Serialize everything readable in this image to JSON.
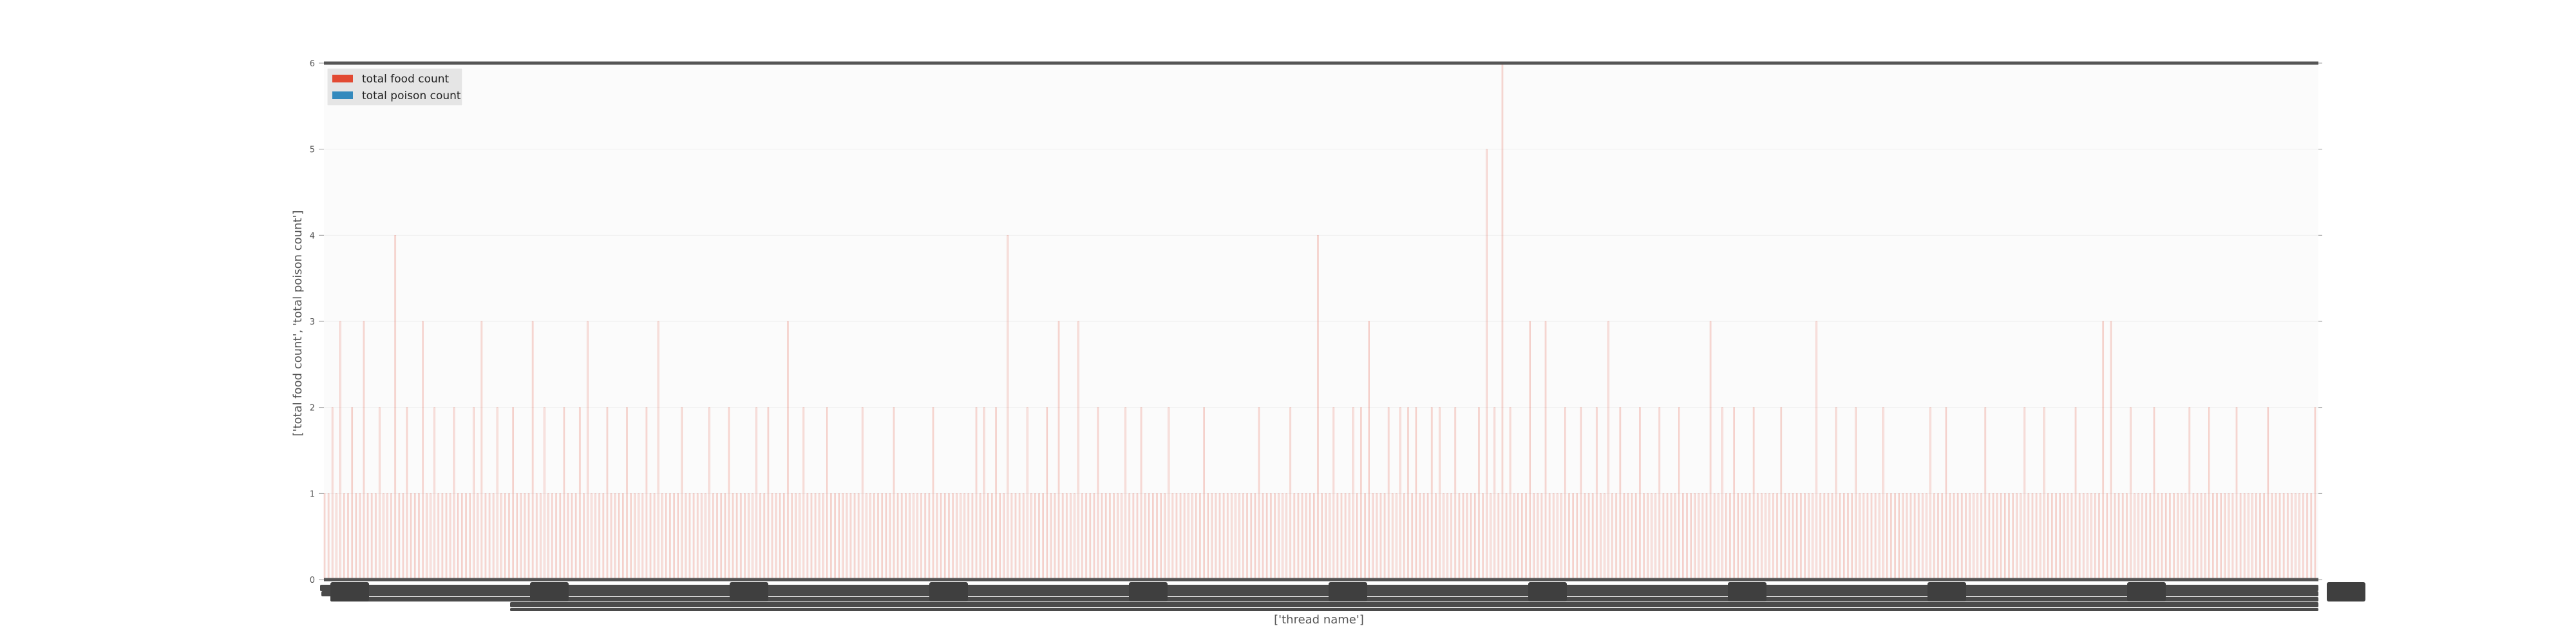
{
  "chart_data": {
    "type": "bar",
    "title": "",
    "xlabel": "['thread name']",
    "ylabel": "['total food count', 'total poison count']",
    "ylim": [
      0,
      6
    ],
    "yticks": [
      0,
      1,
      2,
      3,
      4,
      5,
      6
    ],
    "grid": true,
    "legend_position": "top-left",
    "x_tick_labels_legible": false,
    "category_count": 500,
    "series": [
      {
        "name": "total food count",
        "color": "#e24a33",
        "values": [
          1,
          1,
          2,
          1,
          3,
          1,
          1,
          2,
          1,
          1,
          3,
          1,
          1,
          1,
          2,
          1,
          1,
          1,
          4,
          1,
          1,
          2,
          1,
          1,
          1,
          3,
          1,
          1,
          2,
          1,
          1,
          1,
          1,
          2,
          1,
          1,
          1,
          1,
          2,
          1,
          3,
          1,
          1,
          1,
          2,
          1,
          1,
          1,
          2,
          1,
          1,
          1,
          1,
          3,
          1,
          1,
          2,
          1,
          1,
          1,
          1,
          2,
          1,
          1,
          1,
          2,
          1,
          3,
          1,
          1,
          1,
          1,
          2,
          1,
          1,
          1,
          1,
          2,
          1,
          1,
          1,
          1,
          2,
          1,
          1,
          3,
          1,
          1,
          1,
          1,
          1,
          2,
          1,
          1,
          1,
          1,
          1,
          1,
          2,
          1,
          1,
          1,
          1,
          2,
          1,
          1,
          1,
          1,
          1,
          1,
          2,
          1,
          1,
          2,
          1,
          1,
          1,
          1,
          3,
          1,
          1,
          1,
          2,
          1,
          1,
          1,
          1,
          1,
          2,
          1,
          1,
          1,
          1,
          1,
          1,
          1,
          1,
          2,
          1,
          1,
          1,
          1,
          1,
          1,
          1,
          2,
          1,
          1,
          1,
          1,
          1,
          1,
          1,
          1,
          1,
          2,
          1,
          1,
          1,
          1,
          1,
          1,
          1,
          1,
          1,
          1,
          2,
          1,
          2,
          1,
          1,
          2,
          1,
          1,
          4,
          1,
          1,
          1,
          1,
          2,
          1,
          1,
          1,
          1,
          2,
          1,
          1,
          3,
          1,
          1,
          1,
          1,
          3,
          1,
          1,
          1,
          1,
          2,
          1,
          1,
          1,
          1,
          1,
          1,
          2,
          1,
          1,
          1,
          2,
          1,
          1,
          1,
          1,
          1,
          1,
          2,
          1,
          1,
          1,
          1,
          1,
          1,
          1,
          1,
          2,
          1,
          1,
          1,
          1,
          1,
          1,
          1,
          1,
          1,
          1,
          1,
          1,
          1,
          2,
          1,
          1,
          1,
          1,
          1,
          1,
          1,
          2,
          1,
          1,
          1,
          1,
          1,
          1,
          4,
          1,
          1,
          1,
          2,
          1,
          1,
          1,
          1,
          2,
          1,
          2,
          1,
          3,
          1,
          1,
          1,
          1,
          2,
          1,
          1,
          2,
          1,
          2,
          1,
          2,
          1,
          1,
          1,
          2,
          1,
          2,
          1,
          1,
          1,
          2,
          1,
          1,
          1,
          1,
          1,
          2,
          1,
          5,
          1,
          2,
          1,
          6,
          1,
          2,
          1,
          1,
          1,
          1,
          3,
          1,
          1,
          1,
          3,
          1,
          1,
          1,
          1,
          2,
          1,
          1,
          1,
          2,
          1,
          1,
          1,
          2,
          1,
          1,
          3,
          1,
          1,
          2,
          1,
          1,
          1,
          1,
          2,
          1,
          1,
          1,
          1,
          2,
          1,
          1,
          1,
          1,
          2,
          1,
          1,
          1,
          1,
          1,
          1,
          1,
          3,
          1,
          1,
          2,
          1,
          1,
          2,
          1,
          1,
          1,
          1,
          2,
          1,
          1,
          1,
          1,
          1,
          1,
          2,
          1,
          1,
          1,
          1,
          1,
          1,
          1,
          1,
          3,
          1,
          1,
          1,
          1,
          2,
          1,
          1,
          1,
          1,
          2,
          1,
          1,
          1,
          1,
          1,
          1,
          2,
          1,
          1,
          1,
          1,
          1,
          1,
          1,
          1,
          1,
          1,
          1,
          2,
          1,
          1,
          1,
          2,
          1,
          1,
          1,
          1,
          1,
          1,
          1,
          1,
          1,
          2,
          1,
          1,
          1,
          1,
          1,
          1,
          1,
          1,
          1,
          2,
          1,
          1,
          1,
          1,
          2,
          1,
          1,
          1,
          1,
          1,
          1,
          1,
          2,
          1,
          1,
          1,
          1,
          1,
          1,
          3,
          1,
          3,
          1,
          1,
          1,
          1,
          2,
          1,
          1,
          1,
          1,
          1,
          2,
          1,
          1,
          1,
          1,
          1,
          1,
          1,
          1,
          2,
          1,
          1,
          1,
          1,
          2,
          1,
          1,
          1,
          1,
          1,
          1,
          2,
          1,
          1,
          1,
          1,
          1,
          1,
          1,
          2,
          1,
          1,
          1,
          1,
          1,
          1,
          1,
          1,
          1,
          1,
          1,
          2
        ]
      },
      {
        "name": "total poison count",
        "color": "#348abd",
        "values": [
          0,
          0,
          0,
          0,
          0,
          0,
          0,
          0,
          0,
          0,
          0,
          0,
          0,
          0,
          0,
          0,
          0,
          0,
          0,
          0,
          0,
          0,
          0,
          0,
          0,
          0,
          0,
          0,
          0,
          0,
          0,
          0,
          0,
          0,
          0,
          0,
          0,
          0,
          0,
          0,
          0,
          0,
          0,
          0,
          0,
          0,
          0,
          0,
          0,
          0,
          0,
          0,
          0,
          0,
          0,
          0,
          0,
          0,
          0,
          0,
          0,
          0,
          0,
          0,
          0,
          0,
          0,
          0,
          0,
          0,
          0,
          0,
          0,
          0,
          0,
          0,
          0,
          0,
          0,
          0,
          0,
          0,
          0,
          0,
          0,
          0,
          0,
          0,
          0,
          0,
          0,
          0,
          0,
          0,
          0,
          0,
          0,
          0,
          0,
          0,
          0,
          0,
          0,
          0,
          0,
          0,
          0,
          0,
          0,
          0,
          0,
          0,
          0,
          0,
          0,
          0,
          0,
          0,
          0,
          0,
          0,
          0,
          0,
          0,
          0,
          0,
          0,
          0,
          0,
          0,
          0,
          0,
          0,
          0,
          0,
          0,
          0,
          0,
          0,
          0,
          0,
          0,
          0,
          0,
          0,
          0,
          0,
          0,
          0,
          0,
          0,
          0,
          0,
          0,
          0,
          0,
          0,
          0,
          0,
          0,
          0,
          0,
          0,
          0,
          0,
          0,
          0,
          0,
          0,
          0,
          0,
          0,
          0,
          0,
          0,
          0,
          0,
          0,
          0,
          0,
          0,
          0,
          0,
          0,
          0,
          0,
          0,
          0,
          0,
          0,
          0,
          0,
          0,
          0,
          0,
          0,
          0,
          0,
          0,
          0,
          0,
          0,
          0,
          0,
          0,
          0,
          0,
          0,
          0,
          0,
          0,
          0,
          0,
          0,
          0,
          0,
          0,
          0,
          0,
          0,
          0,
          0,
          0,
          0,
          0,
          0,
          0,
          0,
          0,
          0,
          0,
          0,
          0,
          0,
          0,
          0,
          0,
          0,
          0,
          0,
          0,
          0,
          0,
          0,
          0,
          0,
          0,
          0,
          0,
          0,
          0,
          0,
          0,
          0,
          0,
          0,
          0,
          0,
          0,
          0,
          0,
          0,
          0,
          0,
          0,
          0,
          0,
          0,
          0,
          0,
          0,
          0,
          0,
          0,
          0,
          0,
          0,
          0,
          0,
          0,
          0,
          0,
          0,
          0,
          0,
          0,
          0,
          0,
          0,
          0,
          0,
          0,
          0,
          0,
          0,
          0,
          0,
          0,
          0,
          0,
          0,
          0,
          0,
          0,
          0,
          0,
          0,
          0,
          0,
          0,
          0,
          0,
          0,
          0,
          0,
          0,
          0,
          0,
          0,
          0,
          0,
          0,
          0,
          0,
          0,
          0,
          0,
          0,
          0,
          0,
          0,
          0,
          0,
          0,
          0,
          0,
          0,
          0,
          0,
          0,
          0,
          0,
          0,
          0,
          0,
          0,
          0,
          0,
          0,
          0,
          0,
          0,
          0,
          0,
          0,
          0,
          0,
          0,
          0,
          0,
          0,
          0,
          0,
          0,
          0,
          0,
          0,
          0,
          0,
          0,
          0,
          0,
          0,
          0,
          0,
          0,
          0,
          0,
          0,
          0,
          0,
          0,
          0,
          0,
          0,
          0,
          0,
          0,
          0,
          0,
          0,
          0,
          0,
          0,
          0,
          0,
          0,
          0,
          0,
          0,
          0,
          0,
          0,
          0,
          0,
          0,
          0,
          0,
          0,
          0,
          0,
          0,
          0,
          0,
          0,
          0,
          0,
          0,
          0,
          0,
          0,
          0,
          0,
          0,
          0,
          0,
          0,
          0,
          0,
          0,
          0,
          0,
          0,
          0,
          0,
          0,
          0,
          0,
          0,
          0,
          0,
          0,
          0,
          0,
          0,
          0,
          0,
          0,
          0,
          0,
          0,
          0,
          0,
          0,
          0,
          0,
          0,
          0,
          0,
          0,
          0,
          0,
          0,
          0,
          0,
          0,
          0,
          0,
          0,
          0,
          0,
          0,
          0,
          0,
          0,
          0,
          0,
          0,
          0,
          0,
          0,
          0,
          0,
          0,
          0,
          0,
          0,
          0,
          0,
          0,
          0,
          0,
          0,
          0,
          0,
          0,
          0,
          0,
          0,
          0,
          0,
          0,
          0,
          0,
          0,
          0,
          0,
          0,
          0,
          0,
          0,
          0,
          0,
          0,
          0,
          0,
          0,
          0,
          0,
          0,
          0,
          0,
          0,
          0,
          0,
          0,
          0,
          0,
          0,
          0,
          0
        ]
      }
    ]
  }
}
